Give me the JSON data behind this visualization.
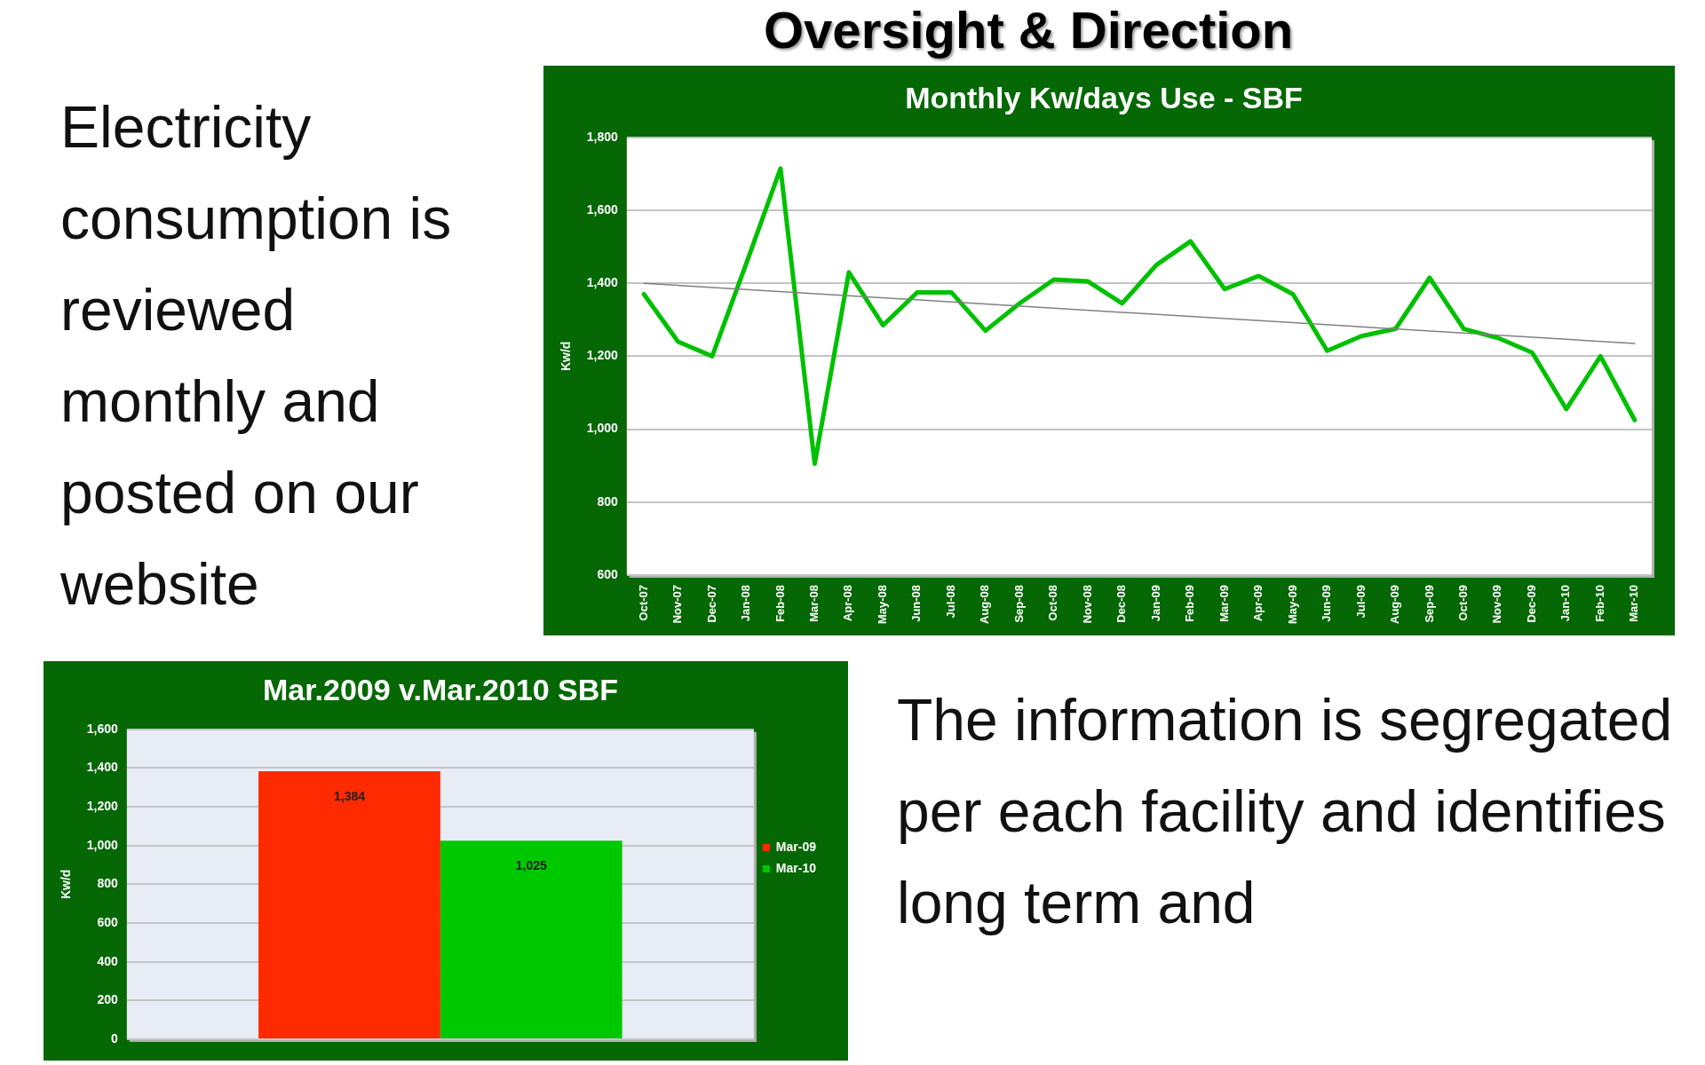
{
  "chart_data": [
    {
      "type": "other",
      "title": "Oversight & Direction",
      "annotations": [
        "Electricity consumption is reviewed monthly and posted on our website",
        "The information is segregated per each facility and identifies long term and"
      ]
    },
    {
      "type": "line",
      "title": "Monthly Kw/days Use - SBF",
      "ylabel": "Kw/d",
      "categories": [
        "Oct-07",
        "Nov-07",
        "Dec-07",
        "Jan-08",
        "Feb-08",
        "Mar-08",
        "Apr-08",
        "May-08",
        "Jun-08",
        "Jul-08",
        "Aug-08",
        "Sep-08",
        "Oct-08",
        "Nov-08",
        "Dec-08",
        "Jan-09",
        "Feb-09",
        "Mar-09",
        "Apr-09",
        "May-09",
        "Jun-09",
        "Jul-09",
        "Aug-09",
        "Sep-09",
        "Oct-09",
        "Nov-09",
        "Dec-09",
        "Jan-10",
        "Feb-10",
        "Mar-10"
      ],
      "series": [
        {
          "color": "#00c000",
          "values": [
            1370,
            1240,
            1200,
            1455,
            1715,
            905,
            1430,
            1285,
            1375,
            1375,
            1270,
            1345,
            1410,
            1405,
            1345,
            1450,
            1515,
            1384,
            1420,
            1370,
            1215,
            1255,
            1275,
            1415,
            1275,
            1250,
            1210,
            1055,
            1200,
            1025
          ]
        },
        {
          "type": "line",
          "color": "#808080",
          "x": [
            "Oct-07",
            "Mar-10"
          ],
          "values": [
            1400,
            1235
          ]
        }
      ],
      "ylim": [
        600,
        1800
      ],
      "yticks": [
        {
          "value": 600,
          "label": "600"
        },
        {
          "value": 800,
          "label": "800"
        },
        {
          "value": 1000,
          "label": "1,000"
        },
        {
          "value": 1200,
          "label": "1,200"
        },
        {
          "value": 1400,
          "label": "1,400"
        },
        {
          "value": 1600,
          "label": "1,600"
        },
        {
          "value": 1800,
          "label": "1,800"
        }
      ],
      "grid": "y",
      "legend": false,
      "marker": "none"
    },
    {
      "type": "bar",
      "title": "Mar.2009 v.Mar.2010 SBF",
      "ylabel": "Kw/d",
      "categories": [
        null
      ],
      "series": [
        {
          "name": "Mar-09",
          "color": "#ff2a00",
          "values": [
            1384
          ],
          "value_labels": [
            "1,384"
          ]
        },
        {
          "name": "Mar-10",
          "color": "#00c800",
          "values": [
            1025
          ],
          "value_labels": [
            "1,025"
          ]
        }
      ],
      "ylim": [
        0,
        1600
      ],
      "yticks": [
        {
          "value": 0,
          "label": "0"
        },
        {
          "value": 200,
          "label": "200"
        },
        {
          "value": 400,
          "label": "400"
        },
        {
          "value": 600,
          "label": "600"
        },
        {
          "value": 800,
          "label": "800"
        },
        {
          "value": 1000,
          "label": "1,000"
        },
        {
          "value": 1200,
          "label": "1,200"
        },
        {
          "value": 1400,
          "label": "1,400"
        },
        {
          "value": 1600,
          "label": "1,600"
        }
      ],
      "grid": "y",
      "legend": "right"
    }
  ]
}
